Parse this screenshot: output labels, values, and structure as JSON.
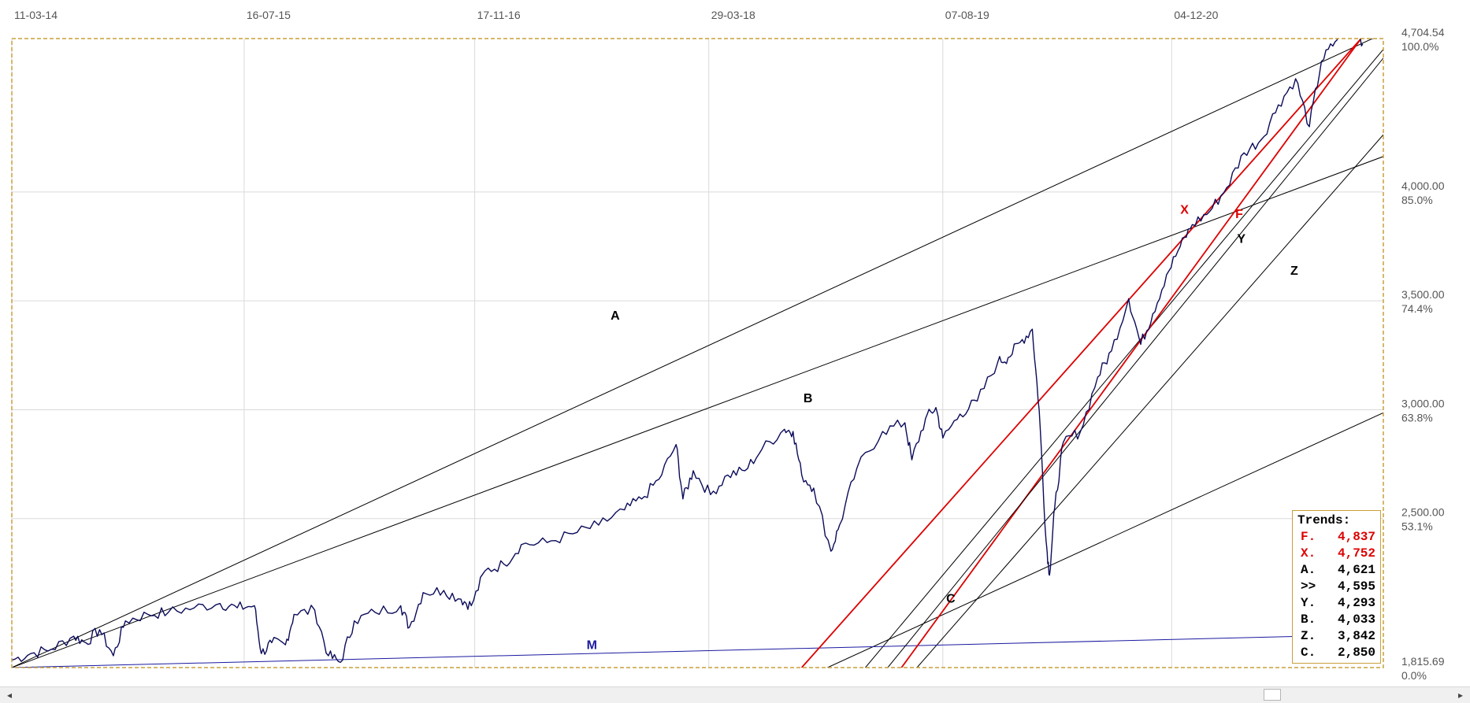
{
  "chart_data": {
    "type": "line",
    "title": "",
    "xlabel": "",
    "ylabel": "",
    "x_ticks": [
      "11-03-14",
      "16-07-15",
      "17-11-16",
      "29-03-18",
      "07-08-19",
      "04-12-20"
    ],
    "x_tick_years": [
      2014.19,
      2015.54,
      2016.88,
      2018.24,
      2019.6,
      2020.93
    ],
    "x_range": [
      2014.19,
      2022.16
    ],
    "y_ticks": [
      {
        "value": 4704.54,
        "label": "4,704.54",
        "pct": "100.0%"
      },
      {
        "value": 4000,
        "label": "4,000.00",
        "pct": "85.0%"
      },
      {
        "value": 3500,
        "label": "3,500.00",
        "pct": "74.4%"
      },
      {
        "value": 3000,
        "label": "3,000.00",
        "pct": "63.8%"
      },
      {
        "value": 2500,
        "label": "2,500.00",
        "pct": "53.1%"
      },
      {
        "value": 1815.69,
        "label": "1,815.69",
        "pct": "0.0%"
      }
    ],
    "y_range": [
      1815.69,
      4704.54
    ],
    "grid": true,
    "series": [
      {
        "color": "#0b0b5a",
        "points": [
          [
            2014.19,
            1850
          ],
          [
            2014.3,
            1880
          ],
          [
            2014.42,
            1900
          ],
          [
            2014.55,
            1960
          ],
          [
            2014.62,
            1930
          ],
          [
            2014.7,
            1990
          ],
          [
            2014.78,
            1870
          ],
          [
            2014.85,
            2030
          ],
          [
            2014.98,
            2060
          ],
          [
            2015.1,
            2070
          ],
          [
            2015.25,
            2090
          ],
          [
            2015.4,
            2110
          ],
          [
            2015.5,
            2090
          ],
          [
            2015.6,
            2100
          ],
          [
            2015.64,
            1880
          ],
          [
            2015.7,
            1930
          ],
          [
            2015.78,
            1920
          ],
          [
            2015.83,
            2060
          ],
          [
            2015.95,
            2080
          ],
          [
            2016.03,
            1870
          ],
          [
            2016.1,
            1840
          ],
          [
            2016.18,
            2030
          ],
          [
            2016.3,
            2070
          ],
          [
            2016.45,
            2100
          ],
          [
            2016.5,
            2000
          ],
          [
            2016.58,
            2160
          ],
          [
            2016.7,
            2170
          ],
          [
            2016.8,
            2130
          ],
          [
            2016.86,
            2100
          ],
          [
            2016.94,
            2260
          ],
          [
            2017.05,
            2290
          ],
          [
            2017.15,
            2380
          ],
          [
            2017.3,
            2390
          ],
          [
            2017.45,
            2430
          ],
          [
            2017.6,
            2470
          ],
          [
            2017.75,
            2540
          ],
          [
            2017.85,
            2590
          ],
          [
            2017.95,
            2680
          ],
          [
            2018.05,
            2840
          ],
          [
            2018.09,
            2590
          ],
          [
            2018.15,
            2720
          ],
          [
            2018.25,
            2610
          ],
          [
            2018.35,
            2700
          ],
          [
            2018.45,
            2720
          ],
          [
            2018.55,
            2820
          ],
          [
            2018.68,
            2910
          ],
          [
            2018.73,
            2900
          ],
          [
            2018.78,
            2700
          ],
          [
            2018.85,
            2640
          ],
          [
            2018.95,
            2350
          ],
          [
            2019.0,
            2470
          ],
          [
            2019.1,
            2730
          ],
          [
            2019.25,
            2900
          ],
          [
            2019.38,
            2940
          ],
          [
            2019.42,
            2770
          ],
          [
            2019.5,
            2960
          ],
          [
            2019.56,
            3010
          ],
          [
            2019.6,
            2870
          ],
          [
            2019.7,
            2980
          ],
          [
            2019.8,
            3040
          ],
          [
            2019.92,
            3220
          ],
          [
            2019.98,
            3240
          ],
          [
            2020.05,
            3310
          ],
          [
            2020.12,
            3370
          ],
          [
            2020.16,
            3000
          ],
          [
            2020.2,
            2400
          ],
          [
            2020.22,
            2240
          ],
          [
            2020.25,
            2550
          ],
          [
            2020.3,
            2850
          ],
          [
            2020.4,
            2900
          ],
          [
            2020.5,
            3150
          ],
          [
            2020.58,
            3270
          ],
          [
            2020.68,
            3510
          ],
          [
            2020.75,
            3300
          ],
          [
            2020.82,
            3440
          ],
          [
            2020.9,
            3620
          ],
          [
            2020.98,
            3750
          ],
          [
            2021.05,
            3850
          ],
          [
            2021.15,
            3910
          ],
          [
            2021.25,
            4020
          ],
          [
            2021.35,
            4180
          ],
          [
            2021.45,
            4240
          ],
          [
            2021.55,
            4400
          ],
          [
            2021.65,
            4520
          ],
          [
            2021.73,
            4300
          ],
          [
            2021.8,
            4600
          ],
          [
            2021.88,
            4690
          ],
          [
            2021.95,
            4780
          ],
          [
            2022.0,
            4790
          ],
          [
            2022.04,
            4680
          ]
        ]
      }
    ],
    "trendlines": [
      {
        "name": "A",
        "color": "#000000",
        "p1": [
          2014.19,
          1815.69
        ],
        "p2": [
          2022.15,
          4724
        ],
        "label_pos": [
          2017.67,
          3413
        ]
      },
      {
        "name": "B",
        "color": "#000000",
        "p1": [
          2014.19,
          1815.69
        ],
        "p2": [
          2022.16,
          4163
        ],
        "label_pos": [
          2018.79,
          3035
        ]
      },
      {
        "name": "C",
        "color": "#000000",
        "p1": [
          2018.93,
          1815.69
        ],
        "p2": [
          2022.16,
          2986
        ],
        "label_pos": [
          2019.62,
          2114
        ]
      },
      {
        "name": "Y",
        "color": "#000000",
        "p1": [
          2019.15,
          1815.69
        ],
        "p2": [
          2022.16,
          4655
        ],
        "label_pos": [
          2021.31,
          3766
        ]
      },
      {
        "name": "Z",
        "color": "#000000",
        "p1": [
          2019.45,
          1815.69
        ],
        "p2": [
          2022.16,
          4263
        ],
        "label_pos": [
          2021.62,
          3620
        ]
      },
      {
        "name": "M",
        "color": "#1a1aa0",
        "p1": [
          2014.19,
          1815.69
        ],
        "p2": [
          2021.98,
          1965
        ],
        "label_pos": [
          2017.53,
          1900
        ]
      },
      {
        "name": "X",
        "color": "#dd0000",
        "p1": [
          2018.78,
          1815.69
        ],
        "p2": [
          2022.03,
          4704
        ],
        "label_pos": [
          2020.98,
          3900
        ]
      },
      {
        "name": "F",
        "color": "#dd0000",
        "p1": [
          2019.36,
          1815.69
        ],
        "p2": [
          2022.03,
          4704
        ],
        "label_pos": [
          2021.3,
          3880
        ]
      },
      {
        "name": "",
        "color": "#000000",
        "p1": [
          2019.28,
          1815.69
        ],
        "p2": [
          2022.16,
          4615
        ],
        "label_pos": null
      }
    ]
  },
  "legend": {
    "title": "Trends:",
    "rows": [
      {
        "label": "F.",
        "value": "4,837",
        "color": "#dd0000"
      },
      {
        "label": "X.",
        "value": "4,752",
        "color": "#dd0000"
      },
      {
        "label": "A.",
        "value": "4,621",
        "color": "#000000"
      },
      {
        "label": ">>",
        "value": "4,595",
        "color": "#000000"
      },
      {
        "label": "Y.",
        "value": "4,293",
        "color": "#000000"
      },
      {
        "label": "B.",
        "value": "4,033",
        "color": "#000000"
      },
      {
        "label": "Z.",
        "value": "3,842",
        "color": "#000000"
      },
      {
        "label": "C.",
        "value": "2,850",
        "color": "#000000"
      }
    ]
  },
  "scrollbar": {
    "left_arrow": "◂",
    "right_arrow": "▸",
    "position": 0.88
  },
  "colors": {
    "frame": "#c9a03a",
    "grid": "#d9d9d9",
    "tick_text": "#555555"
  }
}
